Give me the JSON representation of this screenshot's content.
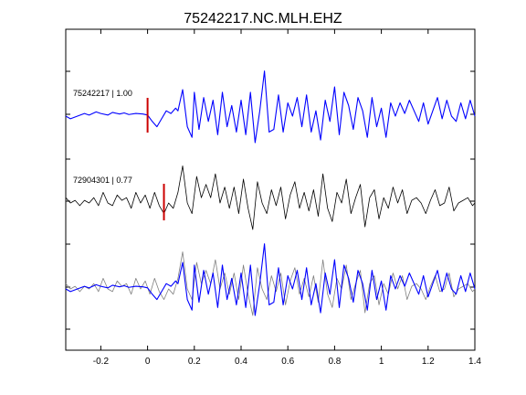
{
  "chart_data": {
    "type": "line",
    "title": "75242217.NC.MLH.EHZ",
    "xlabel": "",
    "ylabel": "",
    "xlim": [
      -0.35,
      1.4
    ],
    "x_ticks": [
      -0.2,
      0,
      0.2,
      0.4,
      0.6,
      0.8,
      1,
      1.2,
      1.4
    ],
    "x_tick_labels": [
      "-0.2",
      "0",
      "0.2",
      "0.4",
      "0.6",
      "0.8",
      "1",
      "1.2",
      "1.4"
    ],
    "grid": false,
    "traces": [
      {
        "label": "75242217 | 1.00",
        "color": "#0000ff",
        "pick_time": 0.0,
        "x": [
          -0.35,
          -0.33,
          -0.3,
          -0.27,
          -0.25,
          -0.22,
          -0.2,
          -0.17,
          -0.15,
          -0.12,
          -0.1,
          -0.08,
          -0.05,
          -0.02,
          0.0,
          0.02,
          0.04,
          0.06,
          0.08,
          0.1,
          0.12,
          0.13,
          0.15,
          0.17,
          0.19,
          0.2,
          0.22,
          0.24,
          0.26,
          0.28,
          0.3,
          0.32,
          0.34,
          0.36,
          0.38,
          0.4,
          0.42,
          0.44,
          0.46,
          0.48,
          0.5,
          0.52,
          0.54,
          0.56,
          0.58,
          0.6,
          0.62,
          0.64,
          0.66,
          0.68,
          0.7,
          0.72,
          0.74,
          0.76,
          0.78,
          0.8,
          0.82,
          0.84,
          0.86,
          0.88,
          0.9,
          0.92,
          0.94,
          0.96,
          0.98,
          1.0,
          1.02,
          1.04,
          1.06,
          1.08,
          1.1,
          1.12,
          1.14,
          1.16,
          1.18,
          1.2,
          1.22,
          1.24,
          1.26,
          1.28,
          1.3,
          1.32,
          1.34,
          1.36,
          1.38,
          1.4
        ],
        "y": [
          0.0,
          -0.05,
          0.0,
          0.05,
          0.02,
          0.08,
          0.05,
          0.02,
          0.07,
          0.04,
          0.06,
          0.03,
          0.05,
          0.04,
          0.02,
          -0.1,
          -0.2,
          -0.05,
          0.1,
          0.05,
          0.15,
          0.1,
          0.5,
          -0.2,
          -0.4,
          0.45,
          -0.25,
          0.35,
          -0.1,
          0.3,
          -0.35,
          0.45,
          -0.2,
          0.2,
          -0.3,
          0.3,
          -0.35,
          0.45,
          -0.5,
          0.1,
          0.85,
          -0.3,
          -0.25,
          0.4,
          -0.3,
          0.25,
          0.0,
          0.35,
          -0.2,
          0.4,
          -0.3,
          0.1,
          -0.45,
          0.3,
          -0.1,
          0.55,
          -0.35,
          0.45,
          0.2,
          -0.25,
          0.35,
          0.1,
          -0.4,
          0.35,
          -0.2,
          0.15,
          -0.4,
          0.25,
          0.0,
          0.25,
          0.05,
          0.3,
          0.1,
          -0.1,
          0.25,
          -0.15,
          0.1,
          0.35,
          -0.05,
          0.3,
          0.0,
          -0.1,
          0.25,
          -0.05,
          0.3,
          0.0
        ]
      },
      {
        "label": "72904301 | 0.77",
        "color": "#000000",
        "pick_time": 0.07,
        "x": [
          -0.35,
          -0.33,
          -0.31,
          -0.29,
          -0.27,
          -0.25,
          -0.23,
          -0.21,
          -0.19,
          -0.17,
          -0.15,
          -0.13,
          -0.11,
          -0.09,
          -0.07,
          -0.05,
          -0.03,
          -0.01,
          0.01,
          0.03,
          0.05,
          0.07,
          0.09,
          0.11,
          0.13,
          0.15,
          0.17,
          0.19,
          0.21,
          0.23,
          0.25,
          0.27,
          0.29,
          0.31,
          0.33,
          0.35,
          0.37,
          0.39,
          0.41,
          0.43,
          0.45,
          0.47,
          0.49,
          0.51,
          0.53,
          0.55,
          0.57,
          0.59,
          0.61,
          0.63,
          0.65,
          0.67,
          0.69,
          0.71,
          0.73,
          0.75,
          0.77,
          0.79,
          0.81,
          0.83,
          0.85,
          0.87,
          0.89,
          0.91,
          0.93,
          0.95,
          0.97,
          0.99,
          1.01,
          1.03,
          1.05,
          1.07,
          1.09,
          1.11,
          1.13,
          1.15,
          1.17,
          1.19,
          1.21,
          1.23,
          1.25,
          1.27,
          1.29,
          1.31,
          1.33,
          1.35,
          1.37,
          1.39,
          1.4
        ],
        "y": [
          0.1,
          0.0,
          0.05,
          -0.05,
          0.05,
          0.0,
          0.1,
          -0.05,
          0.2,
          0.0,
          -0.05,
          0.15,
          0.05,
          0.1,
          -0.1,
          0.2,
          0.0,
          0.15,
          -0.1,
          0.2,
          -0.05,
          -0.2,
          0.0,
          -0.1,
          0.2,
          0.7,
          0.0,
          -0.2,
          0.5,
          0.1,
          0.35,
          0.1,
          0.55,
          0.0,
          0.3,
          -0.1,
          0.3,
          -0.2,
          0.45,
          -0.1,
          -0.5,
          0.4,
          0.0,
          -0.2,
          0.25,
          -0.05,
          0.3,
          -0.3,
          0.15,
          0.4,
          -0.1,
          0.2,
          -0.15,
          0.25,
          -0.25,
          0.55,
          -0.1,
          -0.35,
          0.2,
          0.0,
          0.45,
          -0.2,
          0.1,
          0.35,
          -0.45,
          0.1,
          0.25,
          -0.3,
          0.1,
          -0.1,
          0.3,
          0.0,
          0.25,
          -0.2,
          0.05,
          0.1,
          0.0,
          -0.2,
          0.05,
          0.25,
          -0.05,
          0.0,
          0.3,
          -0.15,
          0.0,
          0.05,
          0.1,
          -0.05,
          0.0
        ]
      },
      {
        "label": "",
        "color": "#0000ff",
        "overlay": true,
        "x": [
          -0.35,
          -0.33,
          -0.3,
          -0.27,
          -0.25,
          -0.22,
          -0.2,
          -0.17,
          -0.15,
          -0.12,
          -0.1,
          -0.08,
          -0.05,
          -0.02,
          0.0,
          0.02,
          0.04,
          0.06,
          0.08,
          0.1,
          0.12,
          0.13,
          0.15,
          0.17,
          0.19,
          0.2,
          0.22,
          0.24,
          0.26,
          0.28,
          0.3,
          0.32,
          0.34,
          0.36,
          0.38,
          0.4,
          0.42,
          0.44,
          0.46,
          0.48,
          0.5,
          0.52,
          0.54,
          0.56,
          0.58,
          0.6,
          0.62,
          0.64,
          0.66,
          0.68,
          0.7,
          0.72,
          0.74,
          0.76,
          0.78,
          0.8,
          0.82,
          0.84,
          0.86,
          0.88,
          0.9,
          0.92,
          0.94,
          0.96,
          0.98,
          1.0,
          1.02,
          1.04,
          1.06,
          1.08,
          1.1,
          1.12,
          1.14,
          1.16,
          1.18,
          1.2,
          1.22,
          1.24,
          1.26,
          1.28,
          1.3,
          1.32,
          1.34,
          1.36,
          1.38,
          1.4
        ],
        "y": [
          0.0,
          -0.05,
          0.0,
          0.05,
          0.02,
          0.08,
          0.05,
          0.02,
          0.07,
          0.04,
          0.06,
          0.03,
          0.05,
          0.04,
          0.02,
          -0.1,
          -0.2,
          -0.05,
          0.1,
          0.05,
          0.15,
          0.1,
          0.5,
          -0.2,
          -0.4,
          0.45,
          -0.25,
          0.35,
          -0.1,
          0.3,
          -0.35,
          0.45,
          -0.2,
          0.2,
          -0.3,
          0.3,
          -0.35,
          0.45,
          -0.5,
          0.1,
          0.85,
          -0.3,
          -0.25,
          0.4,
          -0.3,
          0.25,
          0.0,
          0.35,
          -0.2,
          0.4,
          -0.3,
          0.1,
          -0.45,
          0.3,
          -0.1,
          0.55,
          -0.35,
          0.45,
          0.2,
          -0.25,
          0.35,
          0.1,
          -0.4,
          0.35,
          -0.2,
          0.15,
          -0.4,
          0.25,
          0.0,
          0.25,
          0.05,
          0.3,
          0.1,
          -0.1,
          0.25,
          -0.15,
          0.1,
          0.35,
          -0.05,
          0.3,
          0.0,
          -0.1,
          0.25,
          -0.05,
          0.3,
          0.0
        ]
      },
      {
        "label": "",
        "color": "#808080",
        "overlay": true,
        "x": [
          -0.35,
          -0.33,
          -0.31,
          -0.29,
          -0.27,
          -0.25,
          -0.23,
          -0.21,
          -0.19,
          -0.17,
          -0.15,
          -0.13,
          -0.11,
          -0.09,
          -0.07,
          -0.05,
          -0.03,
          -0.01,
          0.01,
          0.03,
          0.05,
          0.07,
          0.09,
          0.11,
          0.13,
          0.15,
          0.17,
          0.19,
          0.21,
          0.23,
          0.25,
          0.27,
          0.29,
          0.31,
          0.33,
          0.35,
          0.37,
          0.39,
          0.41,
          0.43,
          0.45,
          0.47,
          0.49,
          0.51,
          0.53,
          0.55,
          0.57,
          0.59,
          0.61,
          0.63,
          0.65,
          0.67,
          0.69,
          0.71,
          0.73,
          0.75,
          0.77,
          0.79,
          0.81,
          0.83,
          0.85,
          0.87,
          0.89,
          0.91,
          0.93,
          0.95,
          0.97,
          0.99,
          1.01,
          1.03,
          1.05,
          1.07,
          1.09,
          1.11,
          1.13,
          1.15,
          1.17,
          1.19,
          1.21,
          1.23,
          1.25,
          1.27,
          1.29,
          1.31,
          1.33,
          1.35,
          1.37,
          1.39,
          1.4
        ],
        "y": [
          0.1,
          0.0,
          0.05,
          -0.05,
          0.05,
          0.0,
          0.1,
          -0.05,
          0.2,
          0.0,
          -0.05,
          0.15,
          0.05,
          0.1,
          -0.1,
          0.2,
          0.0,
          0.15,
          -0.1,
          0.2,
          -0.05,
          -0.2,
          0.0,
          -0.1,
          0.2,
          0.7,
          0.0,
          -0.2,
          0.5,
          0.1,
          0.35,
          0.1,
          0.55,
          0.0,
          0.3,
          -0.1,
          0.3,
          -0.2,
          0.45,
          -0.1,
          -0.5,
          0.4,
          0.0,
          -0.2,
          0.25,
          -0.05,
          0.3,
          -0.3,
          0.15,
          0.4,
          -0.1,
          0.2,
          -0.15,
          0.25,
          -0.25,
          0.55,
          -0.1,
          -0.35,
          0.2,
          0.0,
          0.45,
          -0.2,
          0.1,
          0.35,
          -0.45,
          0.1,
          0.25,
          -0.3,
          0.1,
          -0.1,
          0.3,
          0.0,
          0.25,
          -0.2,
          0.05,
          0.1,
          0.0,
          -0.2,
          0.05,
          0.25,
          -0.05,
          0.0,
          0.3,
          -0.15,
          0.0,
          0.05,
          0.1,
          -0.05,
          0.0
        ]
      }
    ],
    "pick_color": "#cc0000"
  }
}
